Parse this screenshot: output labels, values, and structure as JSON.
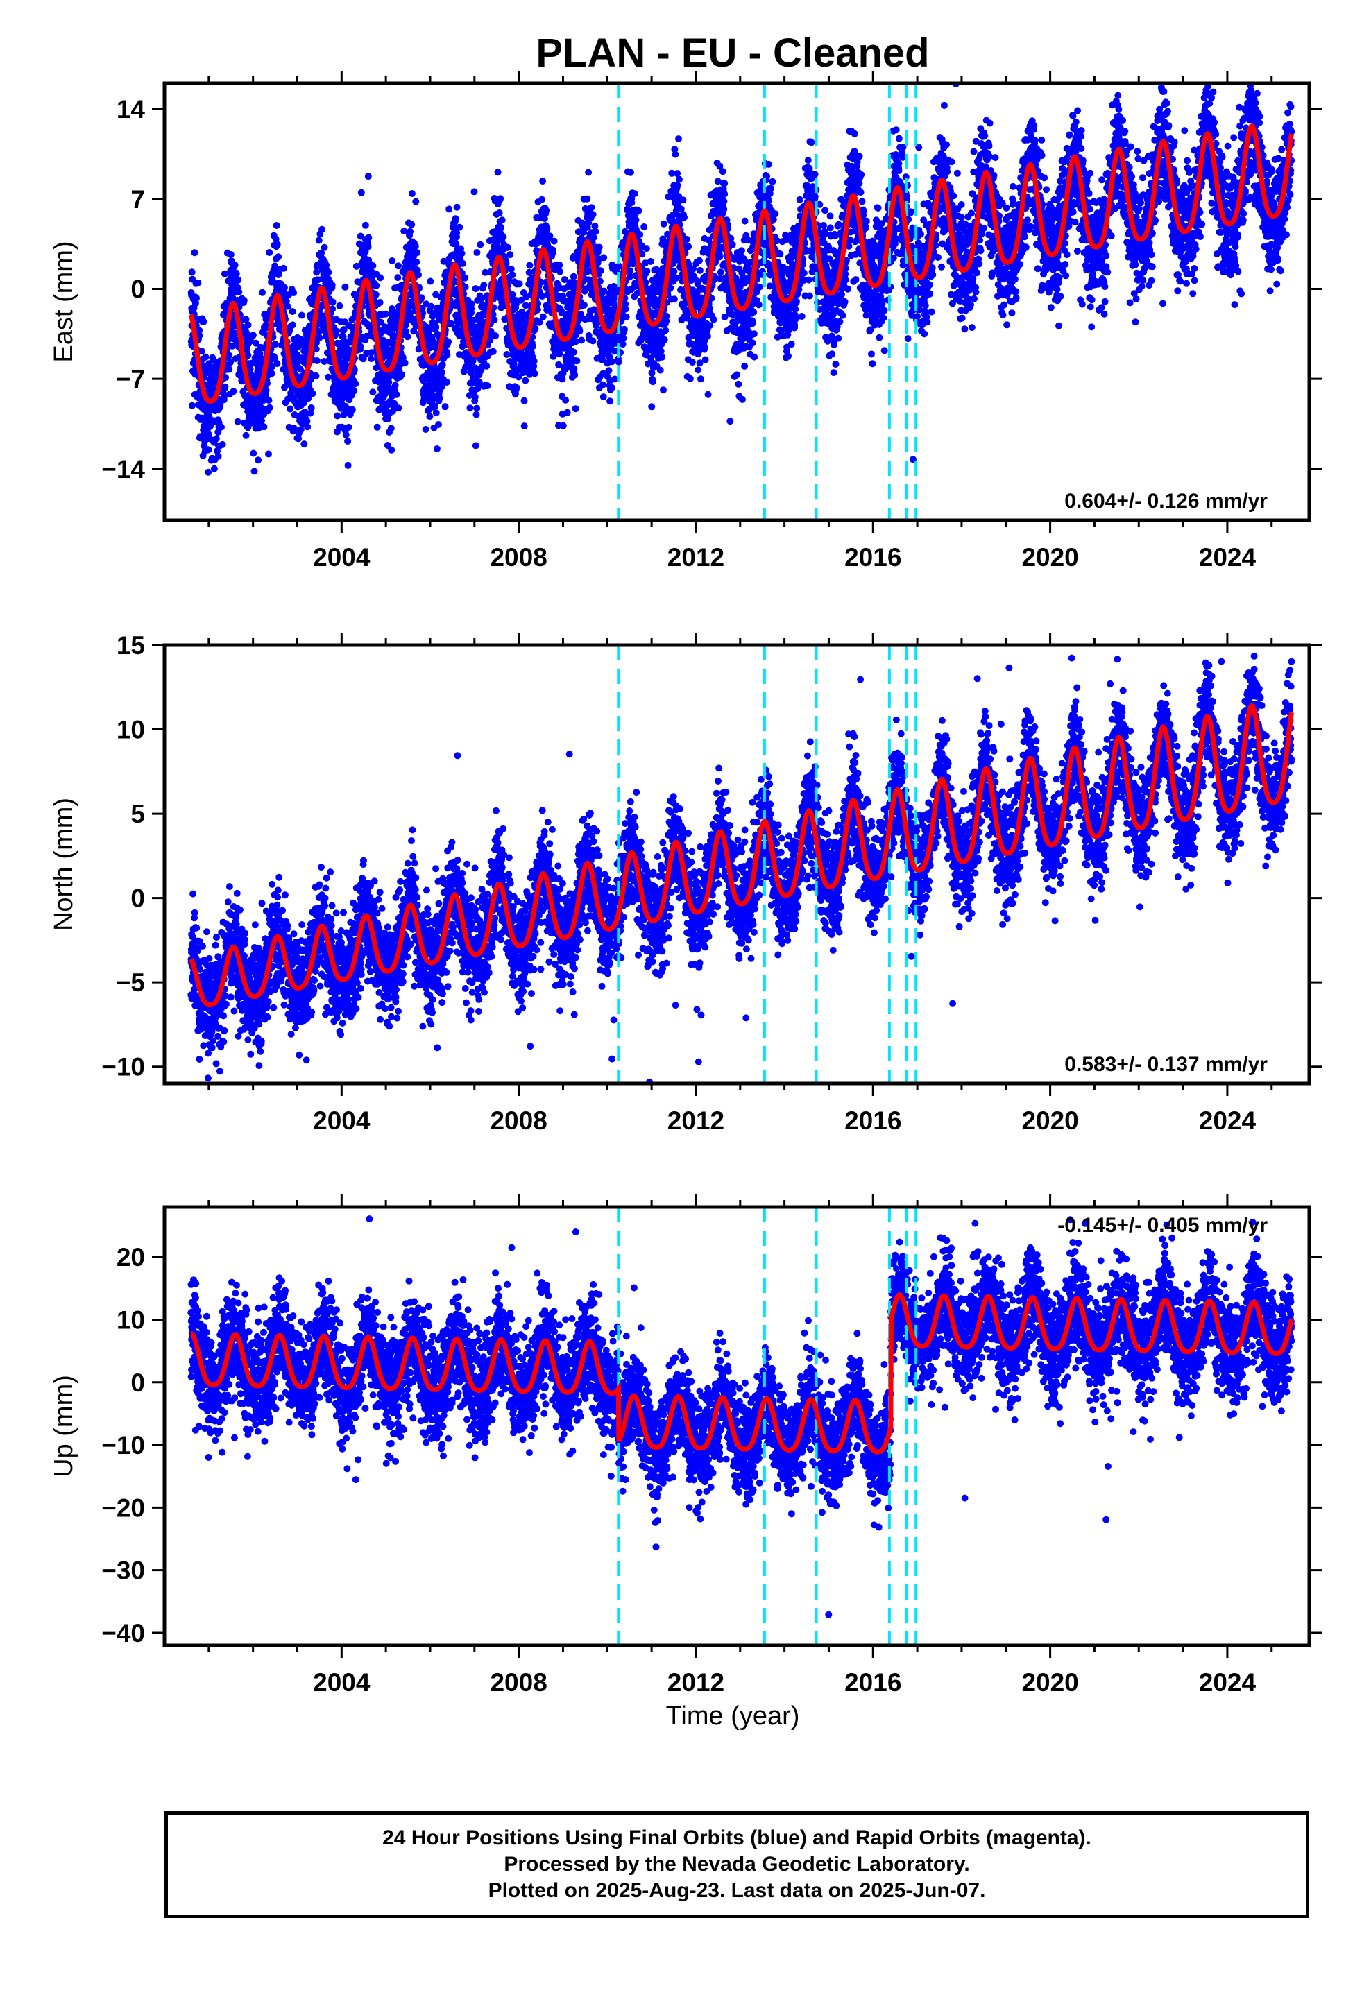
{
  "title": "PLAN  - EU - Cleaned",
  "xlabel": "Time (year)",
  "footer": {
    "line1": "24 Hour Positions Using Final Orbits (blue) and Rapid Orbits (magenta).",
    "line2": "Processed by the Nevada Geodetic Laboratory.",
    "line3": "Plotted on 2025-Aug-23. Last data on 2025-Jun-07."
  },
  "colors": {
    "data": "#0000ff",
    "model": "#ff0000",
    "breaks": "#00e5ff",
    "frame": "#000000"
  },
  "chart_data": [
    {
      "type": "scatter",
      "id": "east",
      "ylabel": "East (mm)",
      "xlim": [
        2000.0,
        2025.85
      ],
      "ylim": [
        -18,
        16
      ],
      "yticks": [
        14,
        7,
        0,
        -7,
        -14
      ],
      "xticks": [
        2004,
        2008,
        2012,
        2016,
        2020,
        2024
      ],
      "rate_label": "0.604+/- 0.126 mm/yr",
      "model": {
        "t0": 2000.6,
        "t1": 2025.45,
        "trend_start": -6.0,
        "slope": 0.6,
        "late_start": 2016.5,
        "late_offset": 0.0,
        "annual_amp": 4.3,
        "phase_peak": 0.55,
        "amp_growth": 0.0,
        "offsets": []
      },
      "noise": 2.2,
      "series": [
        {
          "name": "24 Hour Positions",
          "values": "daily points, ~8900 samples, 2000.6–2025.45"
        }
      ]
    },
    {
      "type": "scatter",
      "id": "north",
      "ylabel": "North (mm)",
      "xlim": [
        2000.0,
        2025.85
      ],
      "ylim": [
        -11,
        15
      ],
      "yticks": [
        15,
        10,
        5,
        0,
        -5,
        -10
      ],
      "xticks": [
        2004,
        2008,
        2012,
        2016,
        2020,
        2024
      ],
      "rate_label": "0.583+/- 0.137 mm/yr",
      "model": {
        "t0": 2000.6,
        "t1": 2025.45,
        "trend_start": -5.3,
        "slope": 0.55,
        "late_start": 2016.5,
        "late_offset": 0.0,
        "annual_amp": 1.8,
        "phase_peak": 0.55,
        "amp_growth": 0.04,
        "offsets": []
      },
      "noise": 1.5,
      "series": [
        {
          "name": "24 Hour Positions",
          "values": "daily points, ~8900 samples, 2000.6–2025.45"
        }
      ]
    },
    {
      "type": "scatter",
      "id": "up",
      "ylabel": "Up (mm)",
      "xlim": [
        2000.0,
        2025.85
      ],
      "ylim": [
        -42,
        28
      ],
      "yticks": [
        20,
        10,
        0,
        -10,
        -20,
        -30,
        -40
      ],
      "xticks": [
        2004,
        2008,
        2012,
        2016,
        2020,
        2024
      ],
      "rate_label": "-0.145+/- 0.405 mm/yr",
      "model": {
        "t0": 2000.6,
        "t1": 2025.45,
        "trend_start": 3.0,
        "slope": -0.145,
        "late_start": 2016.4,
        "late_offset": 0.0,
        "annual_amp": 4.8,
        "phase_peak": 0.6,
        "amp_growth": 0.0,
        "offsets": [
          {
            "t": 2010.25,
            "dy": -8.5
          },
          {
            "t": 2016.4,
            "dy": 17.0
          }
        ]
      },
      "noise": 4.0,
      "series": [
        {
          "name": "24 Hour Positions",
          "values": "daily points, ~8900 samples, 2000.6–2025.45"
        }
      ]
    }
  ],
  "breaks": [
    2010.25,
    2013.55,
    2014.72,
    2016.37,
    2016.75,
    2016.97
  ]
}
